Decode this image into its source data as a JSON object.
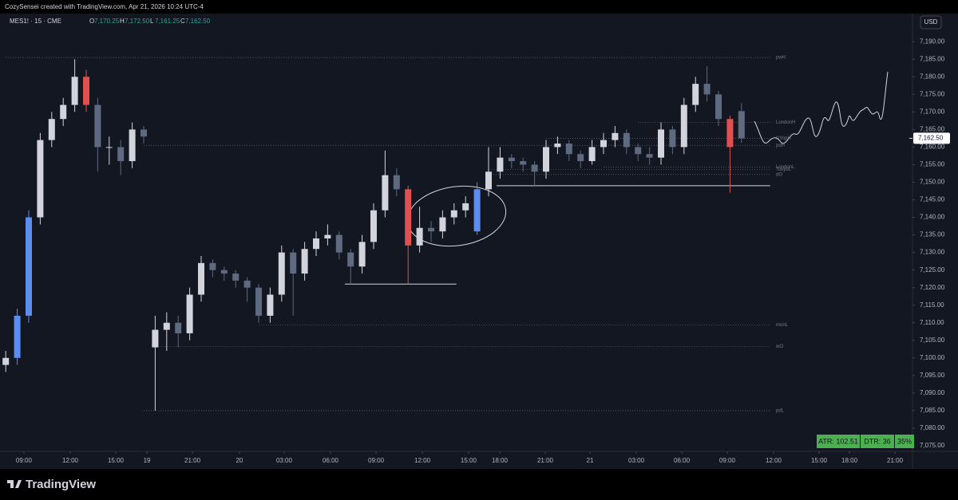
{
  "header": {
    "text": "CozySensei created with TradingView.com, Apr 21, 2026 10:24 UTC-4"
  },
  "footer": {
    "logo": "TradingView"
  },
  "chart_data": {
    "type": "candlestick",
    "symbol": "MES1! · 15 · CME",
    "legend": [
      {
        "key": "O",
        "value": "7,170.25"
      },
      {
        "key": "H",
        "value": "7,172.50"
      },
      {
        "key": "L",
        "value": "7,161.25"
      },
      {
        "key": "C",
        "value": "7,162.50"
      }
    ],
    "currency": "USD",
    "up_color": "#d1d4dc",
    "down_color": "#5d6a80",
    "ohlc": [
      [
        7098,
        7102,
        7096,
        7100
      ],
      [
        7100,
        7114,
        7098,
        7112
      ],
      [
        7112,
        7142,
        7110,
        7140
      ],
      [
        7140,
        7164,
        7138,
        7162
      ],
      [
        7162,
        7170,
        7160,
        7168
      ],
      [
        7168,
        7174,
        7166,
        7172
      ],
      [
        7172,
        7185,
        7170,
        7180
      ],
      [
        7180,
        7182,
        7170,
        7172
      ],
      [
        7172,
        7174,
        7153,
        7160
      ],
      [
        7160,
        7163,
        7155,
        7160
      ],
      [
        7160,
        7162,
        7152,
        7156
      ],
      [
        7156,
        7167,
        7154,
        7165
      ],
      [
        7165,
        7166,
        7161,
        7163
      ],
      [
        7103,
        7112,
        7085,
        7108
      ],
      [
        7108,
        7113,
        7102,
        7110
      ],
      [
        7110,
        7112,
        7103,
        7107
      ],
      [
        7107,
        7120,
        7105,
        7118
      ],
      [
        7118,
        7129,
        7116,
        7127
      ],
      [
        7127,
        7128,
        7123,
        7125
      ],
      [
        7125,
        7126,
        7122,
        7124
      ],
      [
        7124,
        7125,
        7120,
        7122
      ],
      [
        7122,
        7123,
        7116,
        7120
      ],
      [
        7120,
        7121,
        7110,
        7112
      ],
      [
        7112,
        7120,
        7110,
        7118
      ],
      [
        7118,
        7132,
        7116,
        7130
      ],
      [
        7130,
        7131,
        7112,
        7124
      ],
      [
        7124,
        7133,
        7122,
        7131
      ],
      [
        7131,
        7136,
        7129,
        7134
      ],
      [
        7134,
        7138,
        7132,
        7135
      ],
      [
        7135,
        7136,
        7128,
        7130
      ],
      [
        7130,
        7131,
        7121,
        7126
      ],
      [
        7126,
        7135,
        7124,
        7133
      ],
      [
        7133,
        7144,
        7131,
        7142
      ],
      [
        7142,
        7159,
        7140,
        7152
      ],
      [
        7152,
        7154,
        7146,
        7148
      ],
      [
        7148,
        7149,
        7121,
        7132
      ],
      [
        7132,
        7143,
        7130,
        7137
      ],
      [
        7137,
        7139,
        7133,
        7136
      ],
      [
        7136,
        7142,
        7134,
        7140
      ],
      [
        7140,
        7144,
        7138,
        7142
      ],
      [
        7142,
        7146,
        7140,
        7144
      ],
      [
        7136,
        7150,
        7135,
        7148
      ],
      [
        7148,
        7160,
        7146,
        7153
      ],
      [
        7153,
        7160,
        7151,
        7157
      ],
      [
        7157,
        7158,
        7154,
        7156
      ],
      [
        7156,
        7157,
        7153,
        7155
      ],
      [
        7155,
        7156,
        7149,
        7153
      ],
      [
        7153,
        7162,
        7151,
        7160
      ],
      [
        7160,
        7163,
        7158,
        7161
      ],
      [
        7161,
        7162,
        7156,
        7158
      ],
      [
        7158,
        7159,
        7154,
        7156
      ],
      [
        7156,
        7162,
        7155,
        7160
      ],
      [
        7160,
        7164,
        7158,
        7162
      ],
      [
        7162,
        7166,
        7160,
        7164
      ],
      [
        7164,
        7165,
        7158,
        7160
      ],
      [
        7160,
        7161,
        7156,
        7158
      ],
      [
        7158,
        7160,
        7155,
        7157
      ],
      [
        7157,
        7167,
        7155,
        7165
      ],
      [
        7165,
        7166,
        7158,
        7160
      ],
      [
        7160,
        7174,
        7158,
        7172
      ],
      [
        7172,
        7180,
        7170,
        7178
      ],
      [
        7178,
        7183,
        7173,
        7175
      ],
      [
        7175,
        7176,
        7166,
        7168
      ],
      [
        7168,
        7169,
        7147,
        7160
      ],
      [
        7170.25,
        7172.5,
        7161.25,
        7162.5
      ]
    ],
    "highlighted": [
      {
        "index": 1,
        "color": "#5b8def"
      },
      {
        "index": 2,
        "color": "#5b8def"
      },
      {
        "index": 7,
        "color": "#e0504f"
      },
      {
        "index": 35,
        "color": "#e0504f"
      },
      {
        "index": 41,
        "color": "#5b8def"
      },
      {
        "index": 63,
        "color": "#e0504f"
      }
    ],
    "xlim": [
      -0.5,
      78.875
    ],
    "xticks": [
      {
        "value": 1.58,
        "label": "09:00"
      },
      {
        "value": 5.61,
        "label": "12:00"
      },
      {
        "value": 9.57,
        "label": "15:00"
      },
      {
        "value": 12.28,
        "label": "19"
      },
      {
        "value": 16.24,
        "label": "21:00"
      },
      {
        "value": 20.33,
        "label": "20"
      },
      {
        "value": 24.22,
        "label": "03:00"
      },
      {
        "value": 28.25,
        "label": "06:00"
      },
      {
        "value": 32.21,
        "label": "09:00"
      },
      {
        "value": 36.24,
        "label": "12:00"
      },
      {
        "value": 40.26,
        "label": "15:00"
      },
      {
        "value": 42.97,
        "label": "18:00"
      },
      {
        "value": 46.93,
        "label": "21:00"
      },
      {
        "value": 50.82,
        "label": "21"
      },
      {
        "value": 54.85,
        "label": "03:00"
      },
      {
        "value": 58.81,
        "label": "06:00"
      },
      {
        "value": 62.76,
        "label": "09:00"
      },
      {
        "value": 66.79,
        "label": "12:00"
      },
      {
        "value": 70.75,
        "label": "15:00"
      },
      {
        "value": 73.39,
        "label": "18:00"
      },
      {
        "value": 77.35,
        "label": "21:00"
      }
    ],
    "ylim": [
      7073.4,
      7198
    ],
    "yticks": [
      {
        "value": 7075,
        "label": "7,075.00"
      },
      {
        "value": 7080,
        "label": "7,080.00"
      },
      {
        "value": 7085,
        "label": "7,085.00"
      },
      {
        "value": 7090,
        "label": "7,090.00"
      },
      {
        "value": 7095,
        "label": "7,095.00"
      },
      {
        "value": 7100,
        "label": "7,100.00"
      },
      {
        "value": 7105,
        "label": "7,105.00"
      },
      {
        "value": 7110,
        "label": "7,110.00"
      },
      {
        "value": 7115,
        "label": "7,115.00"
      },
      {
        "value": 7120,
        "label": "7,120.00"
      },
      {
        "value": 7125,
        "label": "7,125.00"
      },
      {
        "value": 7130,
        "label": "7,130.00"
      },
      {
        "value": 7135,
        "label": "7,135.00"
      },
      {
        "value": 7140,
        "label": "7,140.00"
      },
      {
        "value": 7145,
        "label": "7,145.00"
      },
      {
        "value": 7150,
        "label": "7,150.00"
      },
      {
        "value": 7155,
        "label": "7,155.00"
      },
      {
        "value": 7160,
        "label": "7,160.00"
      },
      {
        "value": 7165,
        "label": "7,165.00"
      },
      {
        "value": 7170,
        "label": "7,170.00"
      },
      {
        "value": 7175,
        "label": "7,175.00"
      },
      {
        "value": 7180,
        "label": "7,180.00"
      },
      {
        "value": 7185,
        "label": "7,185.00"
      },
      {
        "value": 7190,
        "label": "7,190.00"
      }
    ],
    "last_price": {
      "value": 7162.5,
      "label": "7,162.50"
    },
    "levels": [
      {
        "name": "pwH",
        "value": 7185.5,
        "from": 0
      },
      {
        "name": "LondonH",
        "value": 7167,
        "from": 55
      },
      {
        "name": "NYopH",
        "value": 7162.5,
        "from": 47
      },
      {
        "name": "pdH",
        "value": 7160.5,
        "from": 12
      },
      {
        "name": "LondonL",
        "value": 7154.3,
        "from": 52
      },
      {
        "name": "TokyoL",
        "value": 7153.6,
        "from": 42
      },
      {
        "name": "dO",
        "value": 7152.2,
        "from": 42
      },
      {
        "name": "monL",
        "value": 7109.4,
        "from": 22
      },
      {
        "name": "wO",
        "value": 7103.3,
        "from": 13
      },
      {
        "name": "pdL",
        "value": 7085,
        "from": 12
      }
    ],
    "drawn_lines": [
      {
        "value": 7121,
        "from": 29.5,
        "to": 39.2
      },
      {
        "value": 7149,
        "from": 42.7,
        "to": 66.5
      }
    ],
    "stats": [
      "ATR: 102.51",
      "DTR: 36",
      "35%"
    ]
  }
}
